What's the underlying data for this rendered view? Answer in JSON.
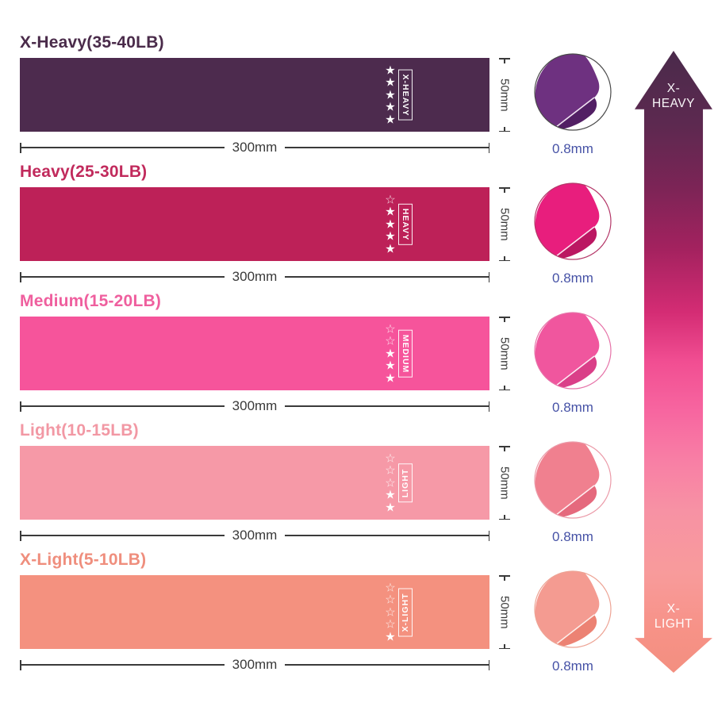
{
  "page": {
    "background": "#ffffff"
  },
  "icons": {
    "star_filled_glyph": "★",
    "star_outline_glyph": "☆"
  },
  "dimension_color": "#3a3a3a",
  "thickness_text_color": "#4652a6",
  "bands": [
    {
      "name": "x-heavy",
      "title": "X-Heavy(35-40LB)",
      "tag": "X-HEAVY",
      "stars_filled": 5,
      "stars_outline": 0,
      "color": "#4d2b4e",
      "title_color": "#4a2b4a",
      "circle_main": "#6e3180",
      "circle_dark": "#521f64",
      "circle_edge": "#f0e3f2",
      "circle_border": "#4a4a4a",
      "tag_reading": "down",
      "width_label": "300mm",
      "height_label": "50mm",
      "thickness_label": "0.8mm"
    },
    {
      "name": "heavy",
      "title": "Heavy(25-30LB)",
      "tag": "HEAVY",
      "stars_filled": 4,
      "stars_outline": 1,
      "color": "#bd2158",
      "title_color": "#c12a5c",
      "circle_main": "#e81e7d",
      "circle_dark": "#bb1762",
      "circle_edge": "#fce3ef",
      "circle_border": "#b43768",
      "tag_reading": "down",
      "width_label": "300mm",
      "height_label": "50mm",
      "thickness_label": "0.8mm"
    },
    {
      "name": "medium",
      "title": "Medium(15-20LB)",
      "tag": "MEDIUM",
      "stars_filled": 3,
      "stars_outline": 2,
      "color": "#f6549b",
      "title_color": "#ef5f9e",
      "circle_main": "#f0569e",
      "circle_dark": "#da3f88",
      "circle_edge": "#fde9f3",
      "circle_border": "#e673a8",
      "tag_reading": "down",
      "width_label": "300mm",
      "height_label": "50mm",
      "thickness_label": "0.8mm"
    },
    {
      "name": "light",
      "title": "Light(10-15LB)",
      "tag": "LIGHT",
      "stars_filled": 2,
      "stars_outline": 3,
      "color": "#f699a7",
      "title_color": "#f298a4",
      "circle_main": "#f0808f",
      "circle_dark": "#e5697d",
      "circle_edge": "#feeef1",
      "circle_border": "#eb9aa8",
      "tag_reading": "up",
      "width_label": "300mm",
      "height_label": "50mm",
      "thickness_label": "0.8mm"
    },
    {
      "name": "x-light",
      "title": "X-Light(5-10LB)",
      "tag": "X-LIGHT",
      "stars_filled": 1,
      "stars_outline": 4,
      "color": "#f4917f",
      "title_color": "#ef8e7d",
      "circle_main": "#f49b91",
      "circle_dark": "#ec8273",
      "circle_edge": "#fdeeea",
      "circle_border": "#eda394",
      "tag_reading": "up",
      "width_label": "300mm",
      "height_label": "50mm",
      "thickness_label": "0.8mm"
    }
  ],
  "scale_arrow": {
    "top_label_line1": "X-",
    "top_label_line2": "HEAVY",
    "bottom_label_line1": "X-",
    "bottom_label_line2": "LIGHT",
    "gradient_stops": [
      {
        "pos": 0,
        "color": "#4a2a4b"
      },
      {
        "pos": 12,
        "color": "#5d2950"
      },
      {
        "pos": 22,
        "color": "#7c2456"
      },
      {
        "pos": 32,
        "color": "#a4225f"
      },
      {
        "pos": 42,
        "color": "#d42c74"
      },
      {
        "pos": 50,
        "color": "#f14e92"
      },
      {
        "pos": 58,
        "color": "#f766a0"
      },
      {
        "pos": 66,
        "color": "#f87fa5"
      },
      {
        "pos": 74,
        "color": "#f792a4"
      },
      {
        "pos": 84,
        "color": "#f89b9b"
      },
      {
        "pos": 93,
        "color": "#f79287"
      },
      {
        "pos": 100,
        "color": "#f38f80"
      }
    ]
  }
}
